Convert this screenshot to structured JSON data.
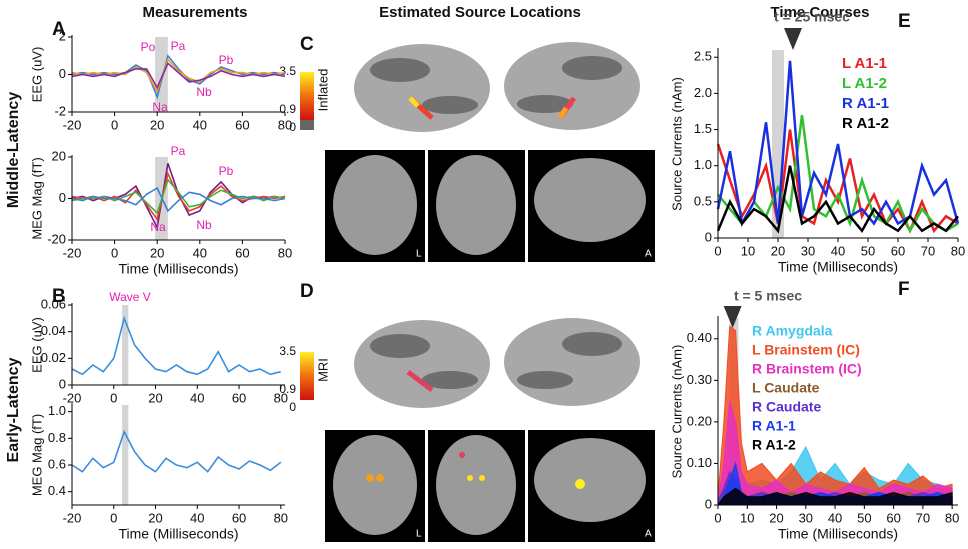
{
  "columns": [
    "Measurements",
    "Estimated Source Locations"
  ],
  "rows": [
    "Middle-Latency",
    "Early-Latency"
  ],
  "panels": [
    "A",
    "B",
    "C",
    "D",
    "E",
    "F"
  ],
  "brain": [
    {
      "scale_label": "Inflated",
      "ticks": [
        3.5,
        0.9,
        0
      ]
    },
    {
      "scale_label": "MRI",
      "ticks": [
        3.5,
        0.9,
        0
      ]
    }
  ],
  "slice_labels": [
    "L",
    "A"
  ],
  "chart_data": [
    {
      "type": "line",
      "ylabel": "EEG (uV)",
      "x": [
        -20,
        -15,
        -10,
        -5,
        0,
        5,
        10,
        15,
        20,
        25,
        30,
        35,
        40,
        45,
        50,
        55,
        60,
        65,
        70,
        75,
        80
      ],
      "xlim": [
        -20,
        80
      ],
      "xticks": [
        -20,
        0,
        20,
        40,
        60,
        80
      ],
      "ylim": [
        -2,
        2
      ],
      "yticks": [
        -2,
        0,
        2
      ],
      "highlight": [
        19,
        25
      ],
      "annotations": [
        "Po",
        "Pa",
        "Na",
        "Nb",
        "Pb"
      ],
      "series": [
        {
          "color": "#3a7fd5",
          "values": [
            0,
            0.1,
            0,
            0.1,
            0,
            0.1,
            0.5,
            0.2,
            -1.2,
            1.0,
            0.3,
            -0.3,
            -0.5,
            0,
            0.4,
            0.2,
            0,
            0.1,
            0,
            0.1,
            0
          ]
        },
        {
          "color": "#e8a020",
          "values": [
            0.1,
            0,
            0.1,
            0,
            0.1,
            0,
            0.4,
            0.1,
            -0.9,
            0.8,
            0.2,
            -0.2,
            -0.4,
            0.1,
            0.3,
            0.1,
            0.1,
            0,
            0.1,
            0,
            0.1
          ]
        },
        {
          "color": "#8a2a9a",
          "values": [
            -0.1,
            0,
            -0.1,
            0,
            -0.1,
            0.1,
            0.3,
            0.3,
            -0.7,
            0.6,
            0.1,
            -0.4,
            -0.3,
            -0.1,
            0.2,
            0,
            -0.1,
            0,
            -0.1,
            0,
            -0.1
          ]
        }
      ]
    },
    {
      "type": "line",
      "ylabel": "MEG Mag (fT)",
      "xlabel": "Time (Milliseconds)",
      "x": [
        -20,
        -15,
        -10,
        -5,
        0,
        5,
        10,
        15,
        20,
        25,
        30,
        35,
        40,
        45,
        50,
        55,
        60,
        65,
        70,
        75,
        80
      ],
      "xlim": [
        -20,
        80
      ],
      "xticks": [
        -20,
        0,
        20,
        40,
        60,
        80
      ],
      "ylim": [
        -20,
        20
      ],
      "yticks": [
        -20,
        0,
        20
      ],
      "highlight": [
        19,
        25
      ],
      "annotations": [
        "Pa",
        "Pb",
        "Na",
        "Nb"
      ],
      "series": [
        {
          "color": "#7a1a8a",
          "values": [
            0,
            1,
            -1,
            1,
            0,
            2,
            6,
            -4,
            -14,
            17,
            2,
            -8,
            -6,
            3,
            8,
            2,
            -2,
            1,
            0,
            1,
            0
          ]
        },
        {
          "color": "#e84020",
          "values": [
            1,
            0,
            1,
            -1,
            1,
            -2,
            4,
            -3,
            -10,
            12,
            1,
            -6,
            -4,
            2,
            6,
            1,
            -1,
            0,
            1,
            0,
            1
          ]
        },
        {
          "color": "#40b040",
          "values": [
            -1,
            0,
            0,
            1,
            -1,
            1,
            3,
            -2,
            -7,
            9,
            3,
            -4,
            -3,
            1,
            4,
            2,
            0,
            1,
            -1,
            1,
            0
          ]
        },
        {
          "color": "#3a7fd5",
          "values": [
            0,
            -1,
            1,
            0,
            0,
            -1,
            -3,
            2,
            5,
            -6,
            -1,
            3,
            2,
            -1,
            -3,
            0,
            1,
            0,
            0,
            -1,
            0
          ]
        }
      ]
    },
    {
      "type": "line",
      "ylabel": "EEG (uV)",
      "x": [
        -20,
        -15,
        -10,
        -5,
        0,
        5,
        10,
        15,
        20,
        25,
        30,
        35,
        40,
        45,
        50,
        55,
        60,
        65,
        70,
        75,
        80
      ],
      "xlim": [
        -20,
        82
      ],
      "xticks": [
        -20,
        0,
        20,
        40,
        60,
        80
      ],
      "ylim": [
        0,
        0.06
      ],
      "yticks": [
        0,
        0.02,
        0.04,
        0.06
      ],
      "highlight": [
        4,
        7
      ],
      "annotations": [
        "Wave V"
      ],
      "series": [
        {
          "color": "#3a8ee0",
          "values": [
            0.012,
            0.008,
            0.015,
            0.01,
            0.02,
            0.05,
            0.03,
            0.02,
            0.012,
            0.01,
            0.015,
            0.01,
            0.008,
            0.012,
            0.025,
            0.01,
            0.015,
            0.01,
            0.012,
            0.008,
            0.01
          ]
        }
      ]
    },
    {
      "type": "line",
      "ylabel": "MEG Mag (fT)",
      "xlabel": "Time (Milliseconds)",
      "x": [
        -20,
        -15,
        -10,
        -5,
        0,
        5,
        10,
        15,
        20,
        25,
        30,
        35,
        40,
        45,
        50,
        55,
        60,
        65,
        70,
        75,
        80
      ],
      "xlim": [
        -20,
        82
      ],
      "xticks": [
        -20,
        0,
        20,
        40,
        60,
        80
      ],
      "ylim": [
        0.3,
        1.05
      ],
      "yticks": [
        0.4,
        0.6,
        0.8,
        {
          "value": 1,
          "label": "1.0"
        }
      ],
      "highlight": [
        4,
        7
      ],
      "annotations": [],
      "series": [
        {
          "color": "#3a8ee0",
          "values": [
            0.6,
            0.55,
            0.65,
            0.58,
            0.62,
            0.85,
            0.7,
            0.6,
            0.55,
            0.65,
            0.6,
            0.58,
            0.62,
            0.55,
            0.66,
            0.6,
            0.57,
            0.63,
            0.6,
            0.56,
            0.62
          ]
        }
      ]
    },
    {
      "type": "line",
      "title": "Time Courses",
      "ylabel": "Source Currents (nAm)",
      "xlabel": "Time (Milliseconds)",
      "x": [
        0,
        4,
        8,
        12,
        16,
        20,
        24,
        28,
        32,
        36,
        40,
        44,
        48,
        52,
        56,
        60,
        64,
        68,
        72,
        76,
        80
      ],
      "xlim": [
        0,
        80
      ],
      "xticks": [
        0,
        10,
        20,
        30,
        40,
        50,
        60,
        70,
        80
      ],
      "ylim": [
        0,
        2.6
      ],
      "yticks": [
        0,
        0.5,
        {
          "value": 1,
          "label": "1.0"
        },
        1.5,
        {
          "value": 2,
          "label": "2.0"
        },
        2.5
      ],
      "highlight": [
        18,
        22
      ],
      "marker": 25,
      "annotations": [
        "t = 25 msec"
      ],
      "legend": "upper right",
      "series": [
        {
          "name": "L A1-1",
          "color": "#e82020",
          "values": [
            1.3,
            0.8,
            0.3,
            0.6,
            1.0,
            0.2,
            1.5,
            0.3,
            0.2,
            0.8,
            0.5,
            1.1,
            0.3,
            0.6,
            0.2,
            0.4,
            0.1,
            0.5,
            0.1,
            0.3,
            0.2
          ]
        },
        {
          "name": "L A1-2",
          "color": "#30c030",
          "values": [
            0.6,
            0.4,
            0.2,
            0.5,
            0.3,
            0.7,
            0.4,
            1.7,
            0.4,
            0.3,
            0.6,
            0.2,
            0.8,
            0.3,
            0.2,
            0.5,
            0.1,
            0.4,
            0.2,
            0.1,
            0.2
          ]
        },
        {
          "name": "R A1-1",
          "color": "#1a30e0",
          "values": [
            0.4,
            1.2,
            0.2,
            0.5,
            1.6,
            0.2,
            2.45,
            0.3,
            0.9,
            0.6,
            1.3,
            0.3,
            0.4,
            0.2,
            0.5,
            0.2,
            0.3,
            1.0,
            0.6,
            0.8,
            0.2
          ]
        },
        {
          "name": "R A1-2",
          "color": "#000000",
          "values": [
            0.1,
            0.5,
            0.2,
            0.4,
            0.3,
            0.1,
            1.0,
            0.2,
            0.3,
            0.5,
            0.2,
            0.3,
            0.1,
            0.4,
            0.2,
            0.1,
            0.3,
            0.1,
            0.2,
            0.1,
            0.3
          ]
        }
      ]
    },
    {
      "type": "area",
      "ylabel": "Source Currents (nAm)",
      "xlabel": "Time (Milliseconds)",
      "x": [
        0,
        2,
        4,
        6,
        8,
        10,
        15,
        20,
        25,
        30,
        35,
        40,
        45,
        50,
        55,
        60,
        65,
        70,
        75,
        80
      ],
      "xlim": [
        0,
        82
      ],
      "xticks": [
        0,
        10,
        20,
        30,
        40,
        50,
        60,
        70,
        80
      ],
      "ylim": [
        0,
        0.45
      ],
      "yticks": [
        0,
        {
          "value": 0.1,
          "label": "0.10"
        },
        {
          "value": 0.2,
          "label": "0.20"
        },
        {
          "value": 0.3,
          "label": "0.30"
        },
        {
          "value": 0.4,
          "label": "0.40"
        }
      ],
      "highlight": [
        4,
        7
      ],
      "marker": 5,
      "annotations": [
        "t = 5 msec"
      ],
      "legend": "upper right",
      "series": [
        {
          "name": "R Amygdala",
          "color": "#40c8f0",
          "values": [
            0.01,
            0.05,
            0.1,
            0.15,
            0.08,
            0.05,
            0.06,
            0.05,
            0.08,
            0.14,
            0.06,
            0.1,
            0.05,
            0.08,
            0.06,
            0.05,
            0.1,
            0.06,
            0.05,
            0.04
          ]
        },
        {
          "name": "L Brainstem (IC)",
          "color": "#f04e23",
          "values": [
            0.02,
            0.2,
            0.43,
            0.42,
            0.15,
            0.08,
            0.1,
            0.06,
            0.1,
            0.05,
            0.08,
            0.06,
            0.05,
            0.09,
            0.04,
            0.06,
            0.05,
            0.07,
            0.04,
            0.05
          ]
        },
        {
          "name": "R Brainstem (IC)",
          "color": "#e830c0",
          "values": [
            0.01,
            0.1,
            0.25,
            0.2,
            0.08,
            0.05,
            0.04,
            0.06,
            0.03,
            0.05,
            0.04,
            0.03,
            0.05,
            0.04,
            0.03,
            0.05,
            0.04,
            0.03,
            0.05,
            0.04
          ]
        },
        {
          "name": "L Caudate",
          "color": "#8b5a2b",
          "values": [
            0.01,
            0.03,
            0.05,
            0.04,
            0.03,
            0.02,
            0.03,
            0.02,
            0.03,
            0.02,
            0.03,
            0.02,
            0.02,
            0.03,
            0.02,
            0.02,
            0.03,
            0.02,
            0.02,
            0.02
          ]
        },
        {
          "name": "R Caudate",
          "color": "#5a30d0",
          "values": [
            0.01,
            0.04,
            0.08,
            0.06,
            0.03,
            0.02,
            0.03,
            0.02,
            0.02,
            0.03,
            0.02,
            0.03,
            0.02,
            0.02,
            0.03,
            0.02,
            0.02,
            0.03,
            0.02,
            0.02
          ]
        },
        {
          "name": "R A1-1",
          "color": "#1a3cf0",
          "values": [
            0,
            0.02,
            0.06,
            0.1,
            0.03,
            0.02,
            0.02,
            0.03,
            0.02,
            0.02,
            0.03,
            0.02,
            0.02,
            0.02,
            0.03,
            0.02,
            0.02,
            0.02,
            0.03,
            0.02
          ]
        },
        {
          "name": "R A1-2",
          "color": "#000000",
          "values": [
            0,
            0.02,
            0.03,
            0.04,
            0.03,
            0.02,
            0.02,
            0.03,
            0.02,
            0.03,
            0.02,
            0.02,
            0.03,
            0.02,
            0.02,
            0.03,
            0.02,
            0.02,
            0.02,
            0.03
          ]
        }
      ]
    }
  ]
}
